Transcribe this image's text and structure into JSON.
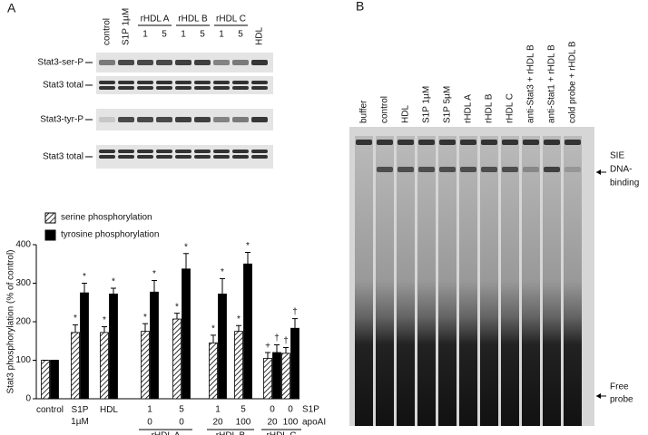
{
  "panels": {
    "a": "A",
    "b": "B"
  },
  "blot": {
    "lanes_before": [
      "control",
      "S1P 1µM"
    ],
    "groups": [
      {
        "name": "rHDL A",
        "doses": [
          1,
          5
        ]
      },
      {
        "name": "rHDL B",
        "doses": [
          1,
          5
        ]
      },
      {
        "name": "rHDL C",
        "doses": [
          1,
          5
        ]
      }
    ],
    "lanes_after": [
      "HDL"
    ],
    "rows": [
      "Stat3-ser-P",
      "Stat3 total",
      "Stat3-tyr-P",
      "Stat3 total"
    ]
  },
  "chart_data": {
    "type": "bar",
    "ylabel": "Stat3 phosphorylation (% of control)",
    "categories": [
      "control",
      "S1P 1µM",
      "HDL",
      null,
      null,
      null,
      null,
      null,
      null
    ],
    "series": [
      {
        "name": "serine phosphorylation",
        "color": "#ffffff",
        "pattern": "hatch",
        "values": [
          100,
          172,
          172,
          175,
          207,
          145,
          175,
          105,
          118
        ],
        "errors": [
          0,
          20,
          15,
          20,
          15,
          20,
          15,
          15,
          15
        ],
        "markers": [
          null,
          "*",
          "*",
          "*",
          "*",
          "*",
          "*",
          "+",
          "†"
        ]
      },
      {
        "name": "tyrosine phosphorylation",
        "color": "#000000",
        "pattern": "solid",
        "values": [
          100,
          275,
          272,
          277,
          337,
          272,
          350,
          120,
          183
        ],
        "errors": [
          0,
          25,
          15,
          30,
          40,
          40,
          30,
          20,
          25
        ],
        "markers": [
          null,
          "*",
          "*",
          "*",
          "*",
          "*",
          "*",
          "†",
          "†"
        ]
      }
    ],
    "dose_rows": [
      {
        "name": "S1P",
        "values": [
          1,
          5,
          1,
          5,
          0,
          0
        ]
      },
      {
        "name": "apoAI",
        "values": [
          0,
          0,
          20,
          100,
          20,
          100
        ]
      }
    ],
    "groups": [
      "rHDL A",
      "rHDL B",
      "rHDL C"
    ],
    "ylim": [
      0,
      400
    ],
    "yticks": [
      0,
      100,
      200,
      300,
      400
    ]
  },
  "gel": {
    "lanes": [
      "buffer",
      "control",
      "HDL",
      "S1P 1µM",
      "S1P 5µM",
      "rHDL A",
      "rHDL B",
      "rHDL C",
      "anti-Stat3 + rHDL B",
      "anti-Stat1 + rHDL B",
      "cold probe + rHDL B"
    ],
    "sie_label": [
      "SIE",
      "DNA-",
      "binding"
    ],
    "free_label": [
      "Free",
      "probe"
    ]
  }
}
